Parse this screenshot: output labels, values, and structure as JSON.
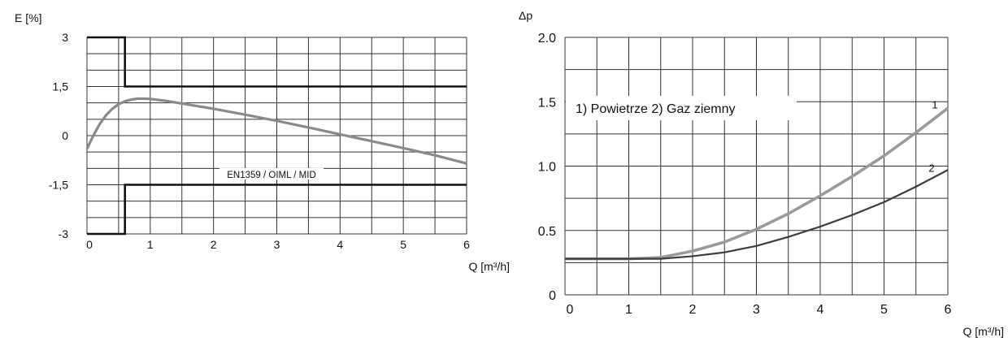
{
  "chart_data": [
    {
      "type": "line",
      "ylabel": "E [%]",
      "xlabel": "Q [m³/h]",
      "xlim": [
        0,
        6
      ],
      "ylim": [
        -3,
        3
      ],
      "x_ticks": [
        "0",
        "1",
        "2",
        "3",
        "4",
        "5",
        "6"
      ],
      "y_ticks": [
        {
          "value": 3,
          "label": "3"
        },
        {
          "value": 1.5,
          "label": "1,5"
        },
        {
          "value": 0,
          "label": "0"
        },
        {
          "value": -1.5,
          "label": "-1,5"
        },
        {
          "value": -3,
          "label": "-3"
        }
      ],
      "grid": true,
      "annotation": "EN1359 / OIML / MID",
      "limits": {
        "upper": [
          [
            0,
            3
          ],
          [
            0.6,
            3
          ],
          [
            0.6,
            1.5
          ],
          [
            6,
            1.5
          ]
        ],
        "lower": [
          [
            0,
            -3
          ],
          [
            0.6,
            -3
          ],
          [
            0.6,
            -1.5
          ],
          [
            6,
            -1.5
          ]
        ]
      },
      "series": [
        {
          "x": [
            0,
            0.1,
            0.2,
            0.3,
            0.4,
            0.5,
            0.6,
            0.7,
            0.8,
            0.9,
            1.0,
            1.25,
            1.5,
            2.0,
            2.5,
            3.0,
            3.5,
            4.0,
            4.5,
            5.0,
            5.5,
            6.0
          ],
          "y": [
            -0.4,
            0.0,
            0.35,
            0.62,
            0.82,
            0.96,
            1.05,
            1.1,
            1.13,
            1.13,
            1.12,
            1.06,
            0.98,
            0.82,
            0.64,
            0.45,
            0.25,
            0.04,
            -0.17,
            -0.38,
            -0.6,
            -0.85
          ]
        }
      ]
    },
    {
      "type": "line",
      "ylabel": "Δp",
      "xlabel": "Q [m³/h]",
      "xlim": [
        0,
        6
      ],
      "ylim": [
        0,
        2.0
      ],
      "x_ticks": [
        "0",
        "1",
        "2",
        "3",
        "4",
        "5",
        "6"
      ],
      "y_ticks": [
        {
          "value": 2.0,
          "label": "2.0"
        },
        {
          "value": 1.5,
          "label": "1.5"
        },
        {
          "value": 1.0,
          "label": "1.0"
        },
        {
          "value": 0.5,
          "label": "0.5"
        },
        {
          "value": 0,
          "label": "0"
        }
      ],
      "grid": true,
      "legend_text": "1) Powietrze  2) Gaz ziemny",
      "series": [
        {
          "name": "1",
          "x": [
            0,
            1.0,
            1.5,
            2.0,
            2.5,
            3.0,
            3.5,
            4.0,
            4.5,
            5.0,
            5.5,
            6.0
          ],
          "y": [
            0.28,
            0.28,
            0.29,
            0.34,
            0.41,
            0.51,
            0.63,
            0.77,
            0.92,
            1.08,
            1.26,
            1.45
          ]
        },
        {
          "name": "2",
          "x": [
            0,
            1.0,
            1.5,
            2.0,
            2.5,
            3.0,
            3.5,
            4.0,
            4.5,
            5.0,
            5.5,
            6.0
          ],
          "y": [
            0.28,
            0.28,
            0.28,
            0.3,
            0.33,
            0.38,
            0.45,
            0.53,
            0.62,
            0.72,
            0.84,
            0.97
          ]
        }
      ]
    }
  ]
}
